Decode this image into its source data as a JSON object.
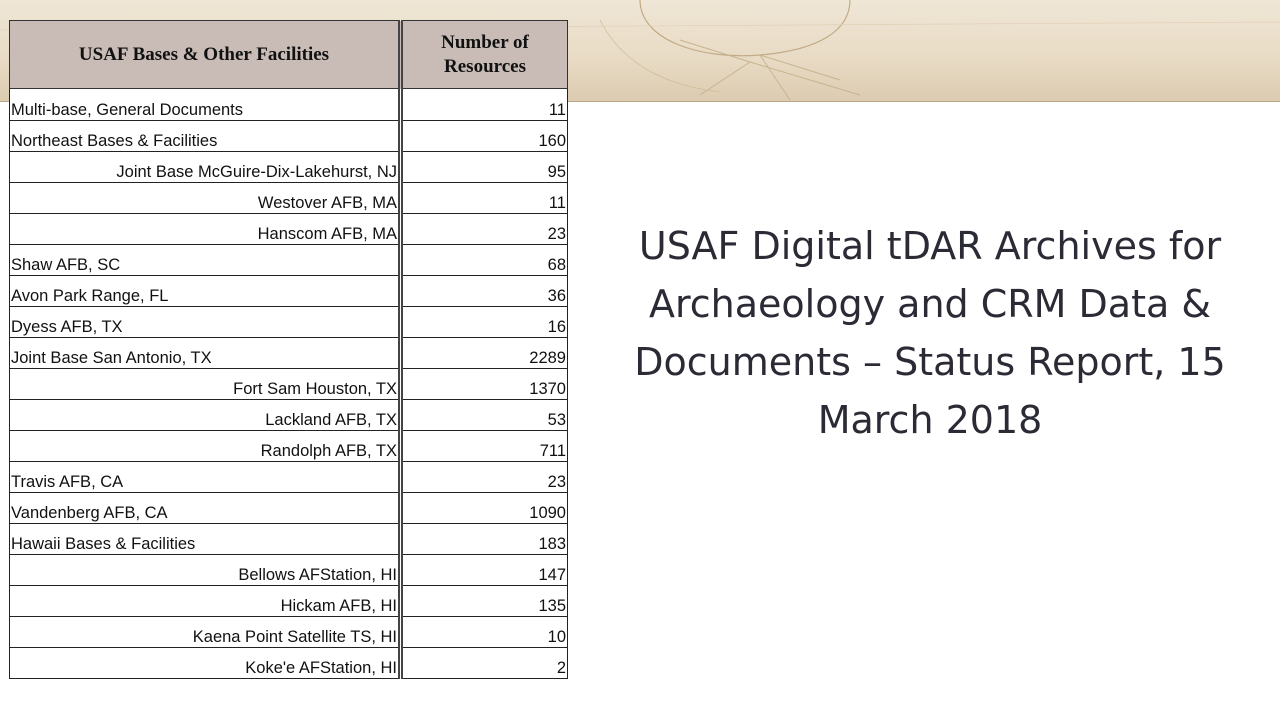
{
  "table": {
    "headers": [
      "USAF Bases & Other Facilities",
      "Number of Resources"
    ],
    "rows": [
      {
        "name": "Multi-base, General Documents",
        "count": "11",
        "align": "left"
      },
      {
        "name": "Northeast Bases & Facilities",
        "count": "160",
        "align": "left"
      },
      {
        "name": "Joint Base McGuire-Dix-Lakehurst, NJ",
        "count": "95",
        "align": "right"
      },
      {
        "name": "Westover AFB, MA",
        "count": "11",
        "align": "right"
      },
      {
        "name": "Hanscom AFB, MA",
        "count": "23",
        "align": "right"
      },
      {
        "name": "Shaw AFB, SC",
        "count": "68",
        "align": "left"
      },
      {
        "name": "Avon Park Range, FL",
        "count": "36",
        "align": "left"
      },
      {
        "name": "Dyess AFB, TX",
        "count": "16",
        "align": "left"
      },
      {
        "name": "Joint Base San Antonio, TX",
        "count": "2289",
        "align": "left"
      },
      {
        "name": "Fort Sam Houston, TX",
        "count": "1370",
        "align": "right"
      },
      {
        "name": "Lackland AFB, TX",
        "count": "53",
        "align": "right"
      },
      {
        "name": "Randolph AFB, TX",
        "count": "711",
        "align": "right"
      },
      {
        "name": "Travis AFB, CA",
        "count": "23",
        "align": "left"
      },
      {
        "name": "Vandenberg AFB, CA",
        "count": "1090",
        "align": "left"
      },
      {
        "name": "Hawaii Bases & Facilities",
        "count": "183",
        "align": "left"
      },
      {
        "name": "Bellows AFStation, HI",
        "count": "147",
        "align": "right"
      },
      {
        "name": "Hickam AFB, HI",
        "count": "135",
        "align": "right"
      },
      {
        "name": "Kaena Point Satellite TS, HI",
        "count": "10",
        "align": "right"
      },
      {
        "name": "Koke'e AFStation, HI",
        "count": "2",
        "align": "right"
      }
    ]
  },
  "title": "USAF Digital tDAR Archives for Archaeology and CRM Data & Documents – Status Report, 15 March 2018",
  "colors": {
    "header_bg": "#c9bcb6",
    "title_text": "#2b2b36",
    "banner": "#e9dcc6"
  }
}
